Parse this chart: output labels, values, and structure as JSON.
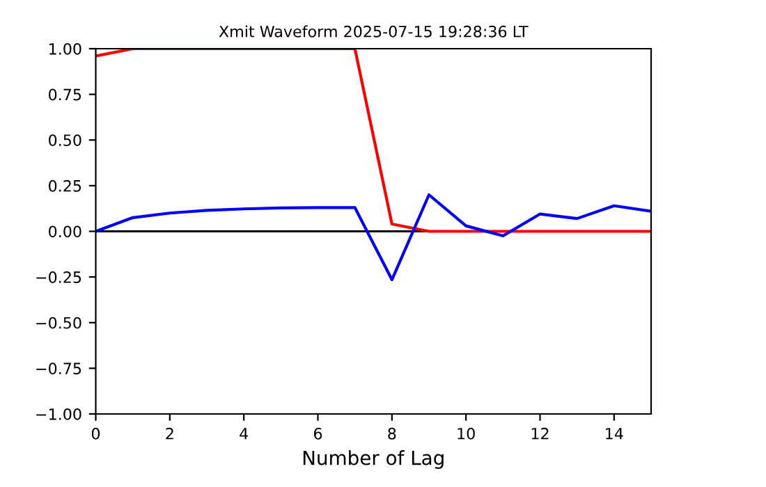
{
  "chart_data": {
    "type": "line",
    "title": "Xmit Waveform 2025-07-15 19:28:36 LT",
    "xlabel": "Number of Lag",
    "x": [
      0,
      1,
      2,
      3,
      4,
      5,
      6,
      7,
      8,
      9,
      10,
      11,
      12,
      13,
      14,
      15
    ],
    "series": [
      {
        "color": "#ff0000",
        "values": [
          0.96,
          1.0,
          1.0,
          1.0,
          1.0,
          1.0,
          1.0,
          1.0,
          0.04,
          0.0,
          0.0,
          0.0,
          0.0,
          0.0,
          0.0,
          0.0
        ]
      },
      {
        "color": "#0000ff",
        "values": [
          0.0,
          0.075,
          0.1,
          0.115,
          0.123,
          0.128,
          0.13,
          0.13,
          -0.265,
          0.2,
          0.03,
          -0.025,
          0.095,
          0.07,
          0.14,
          0.11
        ]
      }
    ],
    "xlim": [
      0,
      15
    ],
    "xticks": [
      0,
      2,
      4,
      6,
      8,
      10,
      12,
      14
    ],
    "ylim": [
      -1.0,
      1.0
    ],
    "yticks": [
      {
        "value": -1.0,
        "label": "−1.00"
      },
      {
        "value": -0.75,
        "label": "−0.75"
      },
      {
        "value": -0.5,
        "label": "−0.50"
      },
      {
        "value": -0.25,
        "label": "−0.25"
      },
      {
        "value": 0.0,
        "label": "0.00"
      },
      {
        "value": 0.25,
        "label": "0.25"
      },
      {
        "value": 0.5,
        "label": "0.50"
      },
      {
        "value": 0.75,
        "label": "0.75"
      },
      {
        "value": 1.0,
        "label": "1.00"
      }
    ],
    "ref_lines": [
      {
        "axis": "y",
        "value": 0,
        "color": "#000000",
        "line_style": "solid"
      }
    ],
    "grid": false,
    "legend": false,
    "marker": "none",
    "line_style": "solid"
  }
}
